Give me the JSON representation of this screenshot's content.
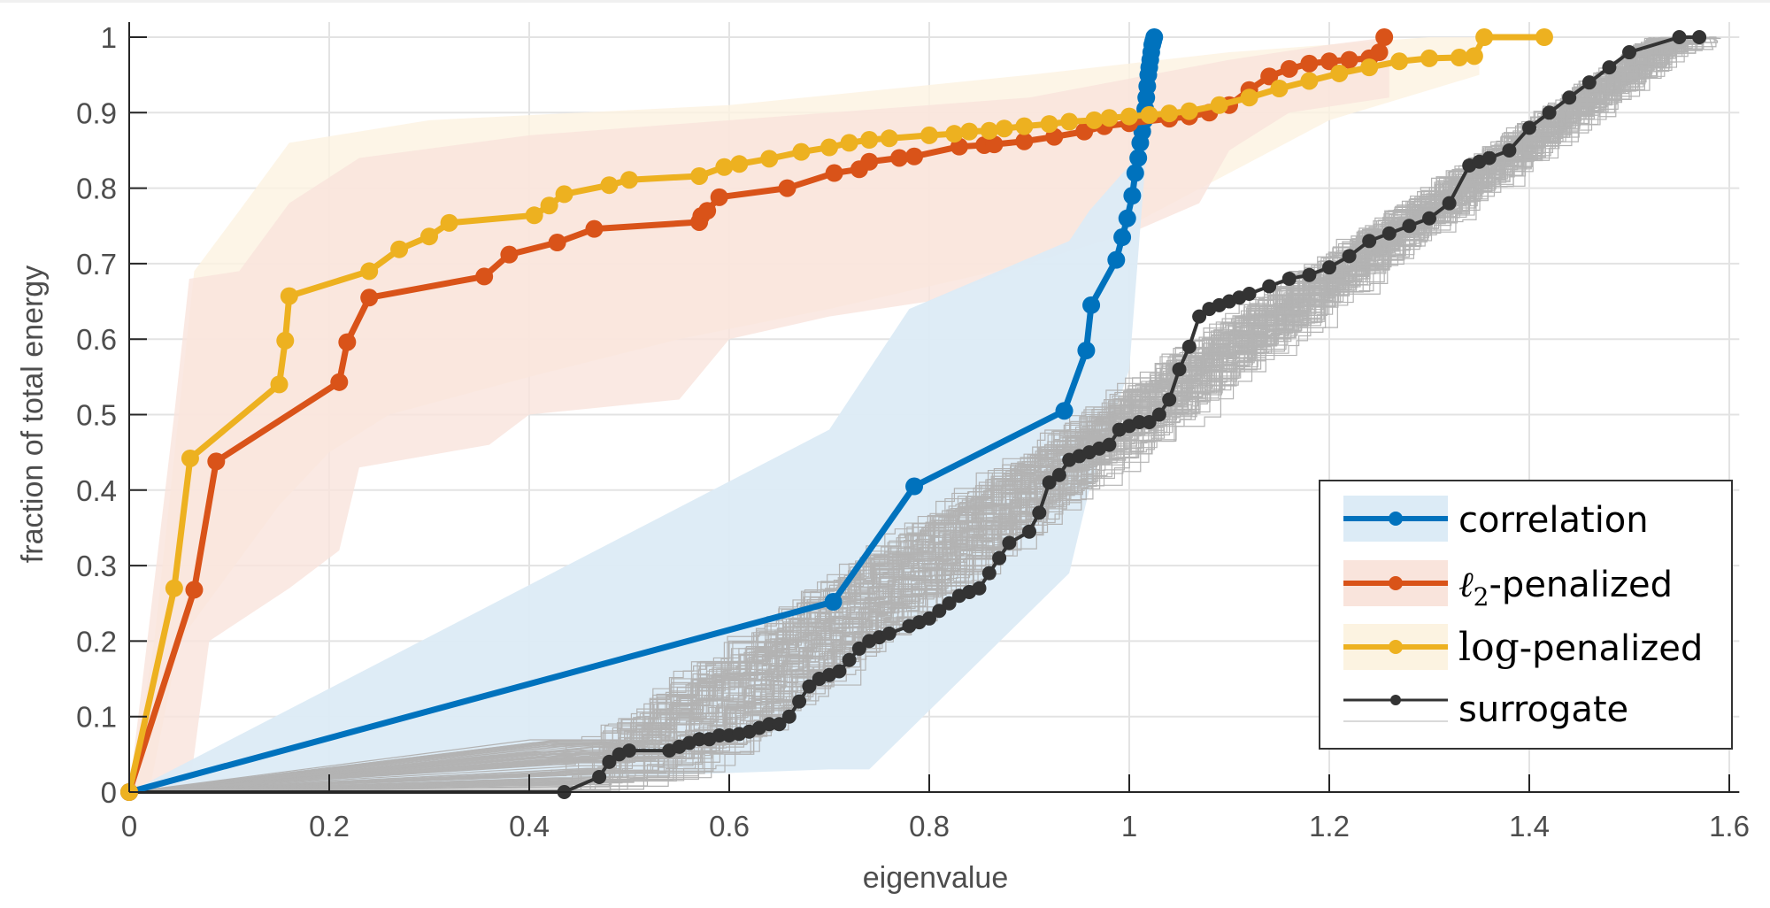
{
  "chart_data": {
    "type": "line",
    "title": "",
    "xlabel": "eigenvalue",
    "ylabel": "fraction of total energy",
    "xlim": [
      0,
      1.61
    ],
    "ylim": [
      0,
      1.02
    ],
    "xticks": [
      0,
      0.2,
      0.4,
      0.6,
      0.8,
      1,
      1.2,
      1.4,
      1.6
    ],
    "xtick_labels": [
      "0",
      "0.2",
      "0.4",
      "0.6",
      "0.8",
      "1",
      "1.2",
      "1.4",
      "1.6"
    ],
    "yticks": [
      0,
      0.1,
      0.2,
      0.3,
      0.4,
      0.5,
      0.6,
      0.7,
      0.8,
      0.9,
      1
    ],
    "ytick_labels": [
      "0",
      "0.1",
      "0.2",
      "0.3",
      "0.4",
      "0.5",
      "0.6",
      "0.7",
      "0.8",
      "0.9",
      "1"
    ],
    "grid": true,
    "legend_position": "bottom-right",
    "series": [
      {
        "name": "correlation",
        "legend_label": "correlation",
        "color": "#0072bd",
        "band_color": "#dcebf6",
        "x": [
          0,
          0.704,
          0.785,
          0.935,
          0.957,
          0.962,
          0.987,
          0.993,
          0.998,
          1.003,
          1.006,
          1.009,
          1.011,
          1.013,
          1.015,
          1.016,
          1.017,
          1.018,
          1.019,
          1.02,
          1.021,
          1.022,
          1.023,
          1.024,
          1.025
        ],
        "y": [
          0,
          0.252,
          0.405,
          0.505,
          0.585,
          0.645,
          0.705,
          0.735,
          0.76,
          0.79,
          0.82,
          0.84,
          0.86,
          0.875,
          0.89,
          0.905,
          0.92,
          0.935,
          0.95,
          0.96,
          0.97,
          0.98,
          0.99,
          0.995,
          1.0
        ],
        "band_upper": {
          "x": [
            0,
            0.7,
            0.78,
            0.94,
            0.96,
            1.0,
            1.01,
            1.02
          ],
          "y": [
            0.0,
            0.48,
            0.64,
            0.73,
            0.77,
            0.83,
            0.9,
            0.93
          ]
        },
        "band_lower": {
          "x": [
            0,
            0.06,
            0.7,
            0.74,
            0.94,
            0.96,
            1.0,
            1.02
          ],
          "y": [
            0.0,
            0.0,
            0.03,
            0.03,
            0.29,
            0.4,
            0.56,
            0.9
          ]
        }
      },
      {
        "name": "l2-penalized",
        "legend_label_math": "ℓ",
        "legend_label_sub": "2",
        "legend_label_rest": "-penalized",
        "color": "#d95319",
        "band_color": "#f9e4dc",
        "x": [
          0,
          0.065,
          0.087,
          0.21,
          0.218,
          0.24,
          0.355,
          0.38,
          0.428,
          0.465,
          0.57,
          0.572,
          0.578,
          0.59,
          0.658,
          0.705,
          0.73,
          0.74,
          0.77,
          0.785,
          0.83,
          0.855,
          0.865,
          0.895,
          0.925,
          0.955,
          0.975,
          1.0,
          1.04,
          1.06,
          1.08,
          1.1,
          1.12,
          1.14,
          1.16,
          1.18,
          1.2,
          1.22,
          1.24,
          1.25,
          1.255
        ],
        "y": [
          0,
          0.268,
          0.438,
          0.543,
          0.596,
          0.655,
          0.683,
          0.712,
          0.728,
          0.746,
          0.755,
          0.763,
          0.77,
          0.788,
          0.8,
          0.82,
          0.825,
          0.835,
          0.84,
          0.842,
          0.855,
          0.857,
          0.858,
          0.862,
          0.868,
          0.875,
          0.882,
          0.886,
          0.892,
          0.895,
          0.9,
          0.91,
          0.93,
          0.948,
          0.958,
          0.965,
          0.968,
          0.97,
          0.972,
          0.98,
          1.0
        ],
        "band_upper": {
          "x": [
            0,
            0.045,
            0.06,
            0.11,
            0.16,
            0.23,
            0.4,
            0.6,
            0.9,
            1.1,
            1.2,
            1.26
          ],
          "y": [
            0,
            0.5,
            0.68,
            0.69,
            0.78,
            0.84,
            0.87,
            0.89,
            0.92,
            0.97,
            0.99,
            1.0
          ]
        },
        "band_lower": {
          "x": [
            0,
            0.06,
            0.08,
            0.16,
            0.21,
            0.23,
            0.36,
            0.4,
            0.55,
            0.6,
            0.7,
            0.8,
            0.9,
            1.0,
            1.07,
            1.1,
            1.16,
            1.26
          ],
          "y": [
            0,
            0,
            0.2,
            0.27,
            0.32,
            0.43,
            0.46,
            0.5,
            0.52,
            0.6,
            0.63,
            0.65,
            0.7,
            0.74,
            0.78,
            0.85,
            0.9,
            0.92
          ]
        }
      },
      {
        "name": "log-penalized",
        "legend_label_log": "log",
        "legend_label_rest": "-penalized",
        "color": "#edb120",
        "band_color": "#fcf3e1",
        "x": [
          0,
          0.045,
          0.061,
          0.15,
          0.156,
          0.16,
          0.24,
          0.27,
          0.3,
          0.32,
          0.405,
          0.42,
          0.435,
          0.48,
          0.5,
          0.57,
          0.595,
          0.61,
          0.64,
          0.672,
          0.7,
          0.72,
          0.74,
          0.76,
          0.8,
          0.825,
          0.84,
          0.86,
          0.875,
          0.895,
          0.92,
          0.94,
          0.965,
          0.98,
          1.0,
          1.02,
          1.04,
          1.06,
          1.09,
          1.12,
          1.15,
          1.18,
          1.21,
          1.24,
          1.27,
          1.3,
          1.33,
          1.345,
          1.355,
          1.415
        ],
        "y": [
          0,
          0.27,
          0.442,
          0.54,
          0.598,
          0.657,
          0.69,
          0.719,
          0.736,
          0.754,
          0.764,
          0.777,
          0.792,
          0.804,
          0.811,
          0.816,
          0.828,
          0.832,
          0.839,
          0.848,
          0.854,
          0.86,
          0.864,
          0.866,
          0.87,
          0.872,
          0.875,
          0.876,
          0.879,
          0.882,
          0.885,
          0.888,
          0.89,
          0.893,
          0.895,
          0.897,
          0.899,
          0.902,
          0.91,
          0.92,
          0.932,
          0.942,
          0.952,
          0.96,
          0.968,
          0.972,
          0.973,
          0.975,
          1.0,
          1.0
        ],
        "band_upper": {
          "x": [
            0,
            0.025,
            0.065,
            0.11,
            0.16,
            0.3,
            0.6,
            0.9,
            1.1,
            1.3,
            1.35
          ],
          "y": [
            0,
            0.2,
            0.69,
            0.77,
            0.86,
            0.89,
            0.91,
            0.95,
            0.98,
            1.0,
            1.0
          ]
        },
        "band_lower": {
          "x": [
            0,
            0.02,
            0.05,
            0.15,
            0.2,
            0.26,
            0.4,
            0.55,
            0.7,
            0.9,
            1.0,
            1.1,
            1.2,
            1.3,
            1.35
          ],
          "y": [
            0,
            0,
            0.2,
            0.38,
            0.45,
            0.5,
            0.55,
            0.6,
            0.64,
            0.7,
            0.75,
            0.82,
            0.89,
            0.93,
            0.95
          ]
        }
      },
      {
        "name": "surrogate",
        "legend_label": "surrogate",
        "color": "#333333",
        "ensemble_color": "#b3b3b3",
        "ensemble_count": 100,
        "x": [
          0,
          0.435,
          0.47,
          0.48,
          0.49,
          0.5,
          0.54,
          0.55,
          0.56,
          0.57,
          0.58,
          0.59,
          0.6,
          0.61,
          0.62,
          0.63,
          0.64,
          0.65,
          0.66,
          0.67,
          0.68,
          0.69,
          0.7,
          0.71,
          0.72,
          0.73,
          0.74,
          0.75,
          0.76,
          0.78,
          0.79,
          0.8,
          0.81,
          0.82,
          0.83,
          0.84,
          0.85,
          0.86,
          0.87,
          0.88,
          0.9,
          0.91,
          0.92,
          0.93,
          0.94,
          0.95,
          0.96,
          0.97,
          0.98,
          0.99,
          1.0,
          1.01,
          1.02,
          1.03,
          1.04,
          1.05,
          1.06,
          1.07,
          1.08,
          1.09,
          1.1,
          1.11,
          1.12,
          1.14,
          1.16,
          1.18,
          1.2,
          1.22,
          1.24,
          1.26,
          1.28,
          1.3,
          1.32,
          1.34,
          1.35,
          1.36,
          1.38,
          1.4,
          1.42,
          1.44,
          1.46,
          1.48,
          1.5,
          1.55,
          1.57
        ],
        "y": [
          0,
          0,
          0.02,
          0.04,
          0.05,
          0.055,
          0.055,
          0.06,
          0.065,
          0.07,
          0.07,
          0.075,
          0.075,
          0.077,
          0.08,
          0.085,
          0.09,
          0.09,
          0.1,
          0.12,
          0.14,
          0.15,
          0.155,
          0.16,
          0.175,
          0.19,
          0.2,
          0.205,
          0.21,
          0.22,
          0.225,
          0.23,
          0.24,
          0.25,
          0.26,
          0.265,
          0.27,
          0.29,
          0.31,
          0.33,
          0.345,
          0.37,
          0.41,
          0.42,
          0.44,
          0.445,
          0.45,
          0.455,
          0.46,
          0.48,
          0.485,
          0.49,
          0.49,
          0.5,
          0.52,
          0.56,
          0.59,
          0.63,
          0.64,
          0.645,
          0.65,
          0.655,
          0.66,
          0.67,
          0.68,
          0.685,
          0.695,
          0.71,
          0.73,
          0.74,
          0.75,
          0.76,
          0.78,
          0.83,
          0.835,
          0.84,
          0.85,
          0.88,
          0.9,
          0.92,
          0.94,
          0.96,
          0.98,
          1.0,
          1.0
        ]
      }
    ]
  }
}
